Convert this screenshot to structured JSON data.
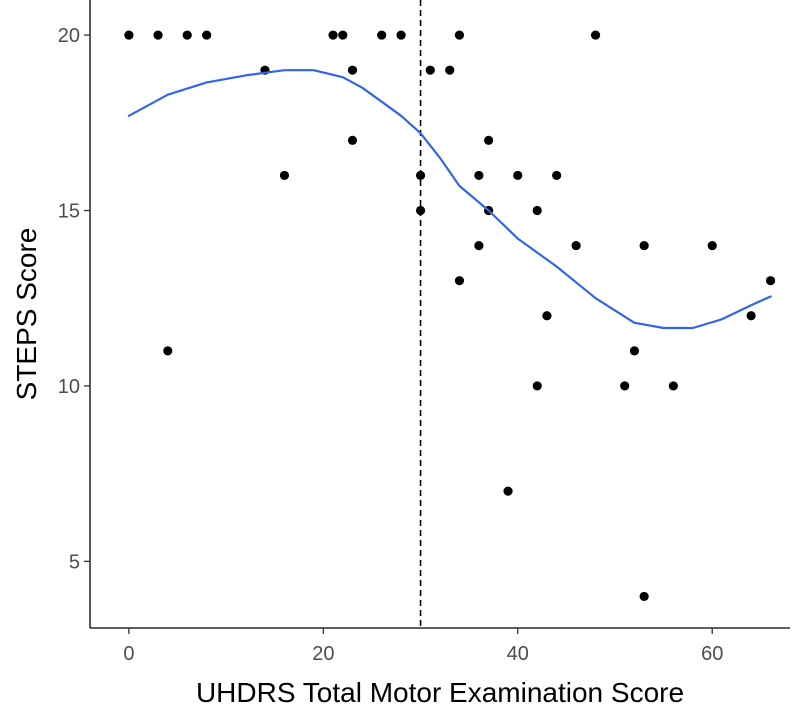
{
  "chart_data": {
    "type": "scatter",
    "title": "",
    "xlabel": "UHDRS Total Motor Examination Score",
    "ylabel": "STEPS Score",
    "xlim": [
      -4,
      68
    ],
    "ylim": [
      3.1,
      21
    ],
    "x_ticks": [
      0,
      20,
      40,
      60
    ],
    "y_ticks": [
      5,
      10,
      15,
      20
    ],
    "grid": false,
    "legend": "none",
    "reference_line": {
      "x": 30,
      "style": "dashed"
    },
    "colors": {
      "points": "#000000",
      "smooth": "#3366e6",
      "reference": "#000000",
      "axis": "#000000"
    },
    "points": [
      {
        "x": 0,
        "y": 20
      },
      {
        "x": 3,
        "y": 20
      },
      {
        "x": 6,
        "y": 20
      },
      {
        "x": 8,
        "y": 20
      },
      {
        "x": 4,
        "y": 11
      },
      {
        "x": 14,
        "y": 19
      },
      {
        "x": 16,
        "y": 16
      },
      {
        "x": 21,
        "y": 20
      },
      {
        "x": 22,
        "y": 20
      },
      {
        "x": 23,
        "y": 19
      },
      {
        "x": 23,
        "y": 17
      },
      {
        "x": 26,
        "y": 20
      },
      {
        "x": 28,
        "y": 20
      },
      {
        "x": 30,
        "y": 16
      },
      {
        "x": 30,
        "y": 15
      },
      {
        "x": 31,
        "y": 19
      },
      {
        "x": 33,
        "y": 19
      },
      {
        "x": 34,
        "y": 20
      },
      {
        "x": 34,
        "y": 13
      },
      {
        "x": 36,
        "y": 16
      },
      {
        "x": 36,
        "y": 14
      },
      {
        "x": 37,
        "y": 17
      },
      {
        "x": 37,
        "y": 15
      },
      {
        "x": 39,
        "y": 7
      },
      {
        "x": 40,
        "y": 16
      },
      {
        "x": 42,
        "y": 15
      },
      {
        "x": 42,
        "y": 10
      },
      {
        "x": 43,
        "y": 12
      },
      {
        "x": 44,
        "y": 16
      },
      {
        "x": 46,
        "y": 14
      },
      {
        "x": 48,
        "y": 20
      },
      {
        "x": 51,
        "y": 10
      },
      {
        "x": 52,
        "y": 11
      },
      {
        "x": 53,
        "y": 14
      },
      {
        "x": 53,
        "y": 4
      },
      {
        "x": 56,
        "y": 10
      },
      {
        "x": 60,
        "y": 14
      },
      {
        "x": 64,
        "y": 12
      },
      {
        "x": 66,
        "y": 13
      }
    ],
    "smooth_line": {
      "x": [
        0,
        4,
        8,
        12,
        16,
        19,
        22,
        24,
        26,
        28,
        30,
        32,
        34,
        37,
        40,
        44,
        48,
        52,
        55,
        58,
        61,
        64,
        66
      ],
      "y": [
        17.7,
        18.3,
        18.65,
        18.85,
        19.0,
        19.0,
        18.8,
        18.5,
        18.1,
        17.7,
        17.2,
        16.5,
        15.7,
        15.0,
        14.2,
        13.4,
        12.5,
        11.8,
        11.65,
        11.65,
        11.9,
        12.3,
        12.55
      ]
    }
  }
}
